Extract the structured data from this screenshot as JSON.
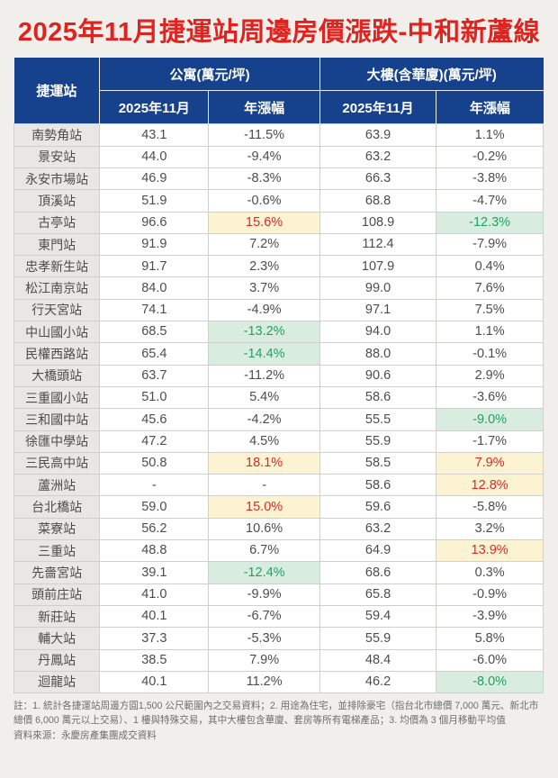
{
  "page": {
    "title": "2025年11月捷運站周邊房價漲跌-中和新蘆線"
  },
  "chart_data": {
    "type": "table",
    "title": "2025年11月捷運站周邊房價漲跌-中和新蘆線",
    "unit": "萬元/坪",
    "column_groups": [
      {
        "label": "捷運站",
        "span": 1
      },
      {
        "label": "公寓(萬元/坪)",
        "span": 2
      },
      {
        "label": "大樓(含華廈)(萬元/坪)",
        "span": 2
      }
    ],
    "sub_columns": [
      "2025年11月",
      "年漲幅",
      "2025年11月",
      "年漲幅"
    ],
    "rows": [
      {
        "station": "南勢角站",
        "apt_price": "43.1",
        "apt_yoy": "-11.5%",
        "apt_hl": "none",
        "bld_price": "63.9",
        "bld_yoy": "1.1%",
        "bld_hl": "none"
      },
      {
        "station": "景安站",
        "apt_price": "44.0",
        "apt_yoy": "-9.4%",
        "apt_hl": "none",
        "bld_price": "63.2",
        "bld_yoy": "-0.2%",
        "bld_hl": "none"
      },
      {
        "station": "永安市場站",
        "apt_price": "46.9",
        "apt_yoy": "-8.3%",
        "apt_hl": "none",
        "bld_price": "66.3",
        "bld_yoy": "-3.8%",
        "bld_hl": "none"
      },
      {
        "station": "頂溪站",
        "apt_price": "51.9",
        "apt_yoy": "-0.6%",
        "apt_hl": "none",
        "bld_price": "68.8",
        "bld_yoy": "-4.7%",
        "bld_hl": "none"
      },
      {
        "station": "古亭站",
        "apt_price": "96.6",
        "apt_yoy": "15.6%",
        "apt_hl": "rise",
        "bld_price": "108.9",
        "bld_yoy": "-12.3%",
        "bld_hl": "fall"
      },
      {
        "station": "東門站",
        "apt_price": "91.9",
        "apt_yoy": "7.2%",
        "apt_hl": "none",
        "bld_price": "112.4",
        "bld_yoy": "-7.9%",
        "bld_hl": "none"
      },
      {
        "station": "忠孝新生站",
        "apt_price": "91.7",
        "apt_yoy": "2.3%",
        "apt_hl": "none",
        "bld_price": "107.9",
        "bld_yoy": "0.4%",
        "bld_hl": "none"
      },
      {
        "station": "松江南京站",
        "apt_price": "84.0",
        "apt_yoy": "3.7%",
        "apt_hl": "none",
        "bld_price": "99.0",
        "bld_yoy": "7.6%",
        "bld_hl": "none"
      },
      {
        "station": "行天宮站",
        "apt_price": "74.1",
        "apt_yoy": "-4.9%",
        "apt_hl": "none",
        "bld_price": "97.1",
        "bld_yoy": "7.5%",
        "bld_hl": "none"
      },
      {
        "station": "中山國小站",
        "apt_price": "68.5",
        "apt_yoy": "-13.2%",
        "apt_hl": "fall",
        "bld_price": "94.0",
        "bld_yoy": "1.1%",
        "bld_hl": "none"
      },
      {
        "station": "民權西路站",
        "apt_price": "65.4",
        "apt_yoy": "-14.4%",
        "apt_hl": "fall",
        "bld_price": "88.0",
        "bld_yoy": "-0.1%",
        "bld_hl": "none"
      },
      {
        "station": "大橋頭站",
        "apt_price": "63.7",
        "apt_yoy": "-11.2%",
        "apt_hl": "none",
        "bld_price": "90.6",
        "bld_yoy": "2.9%",
        "bld_hl": "none"
      },
      {
        "station": "三重國小站",
        "apt_price": "51.0",
        "apt_yoy": "5.4%",
        "apt_hl": "none",
        "bld_price": "58.6",
        "bld_yoy": "-3.6%",
        "bld_hl": "none"
      },
      {
        "station": "三和國中站",
        "apt_price": "45.6",
        "apt_yoy": "-4.2%",
        "apt_hl": "none",
        "bld_price": "55.5",
        "bld_yoy": "-9.0%",
        "bld_hl": "fall"
      },
      {
        "station": "徐匯中學站",
        "apt_price": "47.2",
        "apt_yoy": "4.5%",
        "apt_hl": "none",
        "bld_price": "55.9",
        "bld_yoy": "-1.7%",
        "bld_hl": "none"
      },
      {
        "station": "三民高中站",
        "apt_price": "50.8",
        "apt_yoy": "18.1%",
        "apt_hl": "rise",
        "bld_price": "58.5",
        "bld_yoy": "7.9%",
        "bld_hl": "rise"
      },
      {
        "station": "蘆洲站",
        "apt_price": "-",
        "apt_yoy": "-",
        "apt_hl": "none",
        "bld_price": "58.6",
        "bld_yoy": "12.8%",
        "bld_hl": "rise"
      },
      {
        "station": "台北橋站",
        "apt_price": "59.0",
        "apt_yoy": "15.0%",
        "apt_hl": "rise",
        "bld_price": "59.6",
        "bld_yoy": "-5.8%",
        "bld_hl": "none"
      },
      {
        "station": "菜寮站",
        "apt_price": "56.2",
        "apt_yoy": "10.6%",
        "apt_hl": "none",
        "bld_price": "63.2",
        "bld_yoy": "3.2%",
        "bld_hl": "none"
      },
      {
        "station": "三重站",
        "apt_price": "48.8",
        "apt_yoy": "6.7%",
        "apt_hl": "none",
        "bld_price": "64.9",
        "bld_yoy": "13.9%",
        "bld_hl": "rise"
      },
      {
        "station": "先嗇宮站",
        "apt_price": "39.1",
        "apt_yoy": "-12.4%",
        "apt_hl": "fall",
        "bld_price": "68.6",
        "bld_yoy": "0.3%",
        "bld_hl": "none"
      },
      {
        "station": "頭前庄站",
        "apt_price": "41.0",
        "apt_yoy": "-9.9%",
        "apt_hl": "none",
        "bld_price": "65.8",
        "bld_yoy": "-0.9%",
        "bld_hl": "none"
      },
      {
        "station": "新莊站",
        "apt_price": "40.1",
        "apt_yoy": "-6.7%",
        "apt_hl": "none",
        "bld_price": "59.4",
        "bld_yoy": "-3.9%",
        "bld_hl": "none"
      },
      {
        "station": "輔大站",
        "apt_price": "37.3",
        "apt_yoy": "-5.3%",
        "apt_hl": "none",
        "bld_price": "55.9",
        "bld_yoy": "5.8%",
        "bld_hl": "none"
      },
      {
        "station": "丹鳳站",
        "apt_price": "38.5",
        "apt_yoy": "7.9%",
        "apt_hl": "none",
        "bld_price": "48.4",
        "bld_yoy": "-6.0%",
        "bld_hl": "none"
      },
      {
        "station": "迴龍站",
        "apt_price": "40.1",
        "apt_yoy": "11.2%",
        "apt_hl": "none",
        "bld_price": "46.2",
        "bld_yoy": "-8.0%",
        "bld_hl": "fall"
      }
    ]
  },
  "footer": {
    "note": "註：1. 統計各捷運站周邊方圓1,500 公尺範圍內之交易資料；2. 用途為住宅，並排除豪宅（指台北市總價 7,000 萬元、新北市總價 6,000 萬元以上交易）、1 樓與特殊交易，其中大樓包含華廈、套房等所有電梯產品；3. 均價為 3 個月移動平均值",
    "source": "資料來源：永慶房產集團成交資料"
  },
  "colors": {
    "page_bg": "#f0efeb",
    "title_red": "#e0231e",
    "header_navy": "#16418d",
    "station_bg": "#e8e7e3",
    "rise_bg": "#fcf3d3",
    "rise_text": "#e3262a",
    "fall_bg": "#d8ecdf",
    "fall_text": "#21a263"
  }
}
